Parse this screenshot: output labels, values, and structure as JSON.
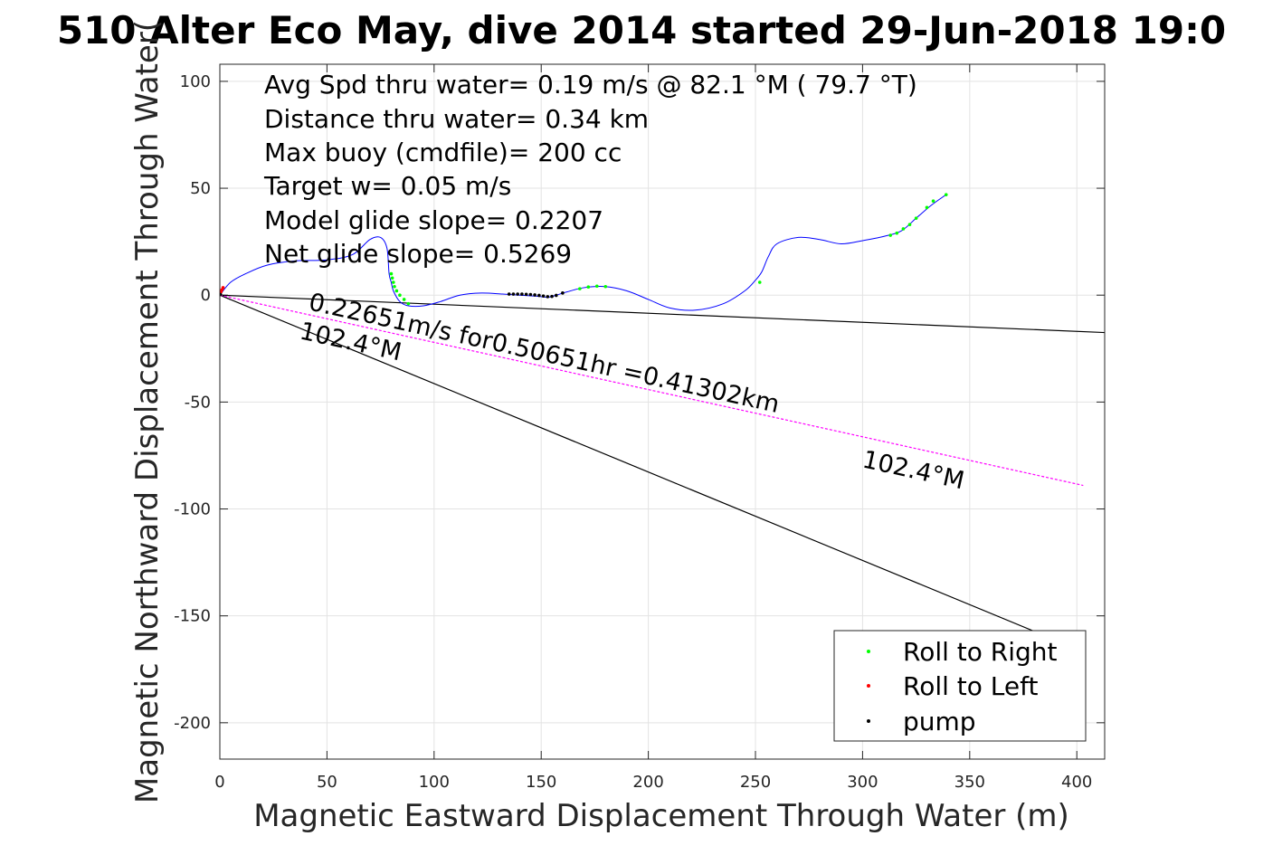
{
  "chart_data": {
    "type": "line",
    "title": "510 Alter Eco May, dive 2014 started 29-Jun-2018 19:0",
    "xlabel": "Magnetic Eastward Displacement Through Water (m)",
    "ylabel": "Magnetic Northward Displacement Through Water(",
    "xlim": [
      0,
      413
    ],
    "ylim": [
      -217,
      108
    ],
    "xticks": [
      0,
      50,
      100,
      150,
      200,
      250,
      300,
      350,
      400
    ],
    "yticks": [
      100,
      50,
      0,
      -50,
      -100,
      -150,
      -200
    ],
    "grid": true,
    "info_lines": [
      "Avg Spd thru water=  0.19 m/s @  82.1 °M ( 79.7 °T)",
      "Distance thru water=  0.34 km",
      "Max buoy (cmdfile)= 200 cc",
      "Target w= 0.05 m/s",
      "Model glide slope= 0.2207",
      "Net glide slope= 0.5269"
    ],
    "annotations": {
      "current_label": "0.22651m/s for0.50651hr =0.41302km",
      "heading_label_near": "102.4°M",
      "heading_label_far": "102.4°M"
    },
    "track": {
      "name": "track",
      "color": "#0000ff",
      "x": [
        0,
        5,
        12,
        22,
        35,
        50,
        62,
        70,
        75,
        78,
        79,
        80,
        81,
        84,
        88,
        95,
        103,
        112,
        122,
        132,
        140,
        148,
        153,
        157,
        162,
        170,
        180,
        190,
        200,
        210,
        222,
        235,
        245,
        250,
        253,
        256,
        260,
        270,
        280,
        290,
        300,
        310,
        318,
        325,
        332,
        339
      ],
      "y": [
        0,
        6,
        10,
        14,
        16,
        16.5,
        19,
        26,
        27,
        22,
        10,
        6,
        2,
        -3,
        -5,
        -5,
        -3,
        0,
        1,
        0.5,
        0,
        -0.5,
        -1,
        0,
        1.5,
        3.5,
        4,
        2,
        -2,
        -6,
        -7,
        -4,
        2,
        7,
        11,
        18,
        24,
        27,
        26,
        24,
        25.5,
        27.5,
        30,
        36,
        42,
        47
      ]
    },
    "roll_right": {
      "name": "Roll to Right",
      "color": "#00ff00",
      "x": [
        80,
        80.5,
        81,
        81.5,
        82.5,
        84,
        86,
        88,
        168,
        172,
        176,
        180,
        252,
        313,
        316,
        319,
        322,
        325,
        330,
        333,
        339
      ],
      "y": [
        10,
        8,
        6,
        4,
        2,
        0,
        -2,
        -4,
        3,
        3.8,
        4.2,
        4,
        6,
        28,
        29,
        31,
        33,
        36,
        41,
        44,
        47
      ]
    },
    "roll_left": {
      "name": "Roll to Left",
      "color": "#ff0000",
      "x": [
        0.5,
        1,
        1.5
      ],
      "y": [
        1.5,
        2.5,
        3.5
      ]
    },
    "pump": {
      "name": "pump",
      "color": "#000000",
      "x": [
        135,
        137,
        139,
        141,
        143,
        145,
        147,
        149,
        151,
        153,
        155,
        157,
        160
      ],
      "y": [
        0.5,
        0.5,
        0.5,
        0.5,
        0.4,
        0.3,
        0.1,
        -0.1,
        -0.4,
        -0.7,
        -0.6,
        -0.1,
        1
      ],
      "extra_x": [
        0.3
      ],
      "extra_y": [
        0.3
      ]
    },
    "lines": [
      {
        "name": "glide-ref-upper",
        "color": "#000000",
        "x": [
          0,
          413
        ],
        "y": [
          0,
          -17.5
        ]
      },
      {
        "name": "glide-ref-lower",
        "color": "#000000",
        "x": [
          0,
          382
        ],
        "y": [
          0,
          -158
        ]
      },
      {
        "name": "current-vector",
        "color": "#ff00ff",
        "x": [
          0,
          403
        ],
        "y": [
          0,
          -89
        ]
      }
    ],
    "legend": {
      "position": "bottom-right",
      "entries": [
        "Roll to Right",
        "Roll to Left",
        "pump"
      ]
    }
  }
}
